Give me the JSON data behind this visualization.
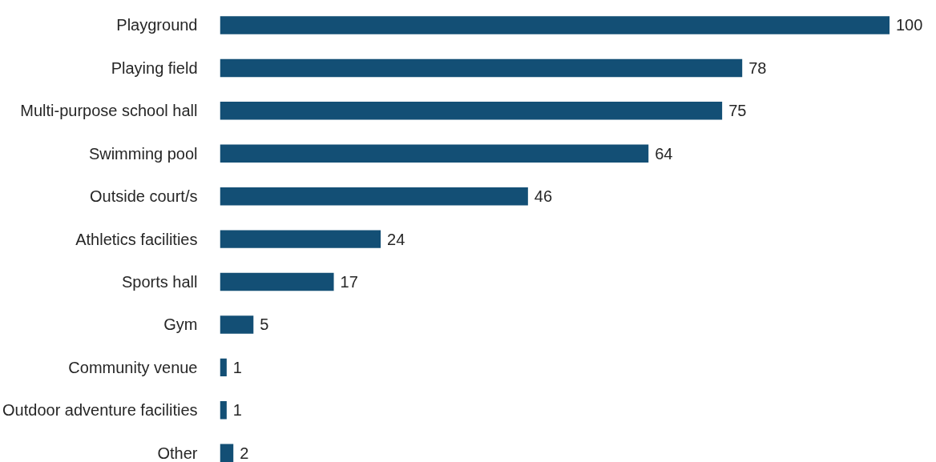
{
  "chart_data": {
    "type": "bar",
    "orientation": "horizontal",
    "categories": [
      "Playground",
      "Playing field",
      "Multi-purpose school hall",
      "Swimming pool",
      "Outside court/s",
      "Athletics facilities",
      "Sports hall",
      "Gym",
      "Community venue",
      "Outdoor adventure facilities",
      "Other"
    ],
    "values": [
      100,
      78,
      75,
      64,
      46,
      24,
      17,
      5,
      1,
      1,
      2
    ],
    "color": "#134f75",
    "data_labels": true,
    "grid": false
  }
}
